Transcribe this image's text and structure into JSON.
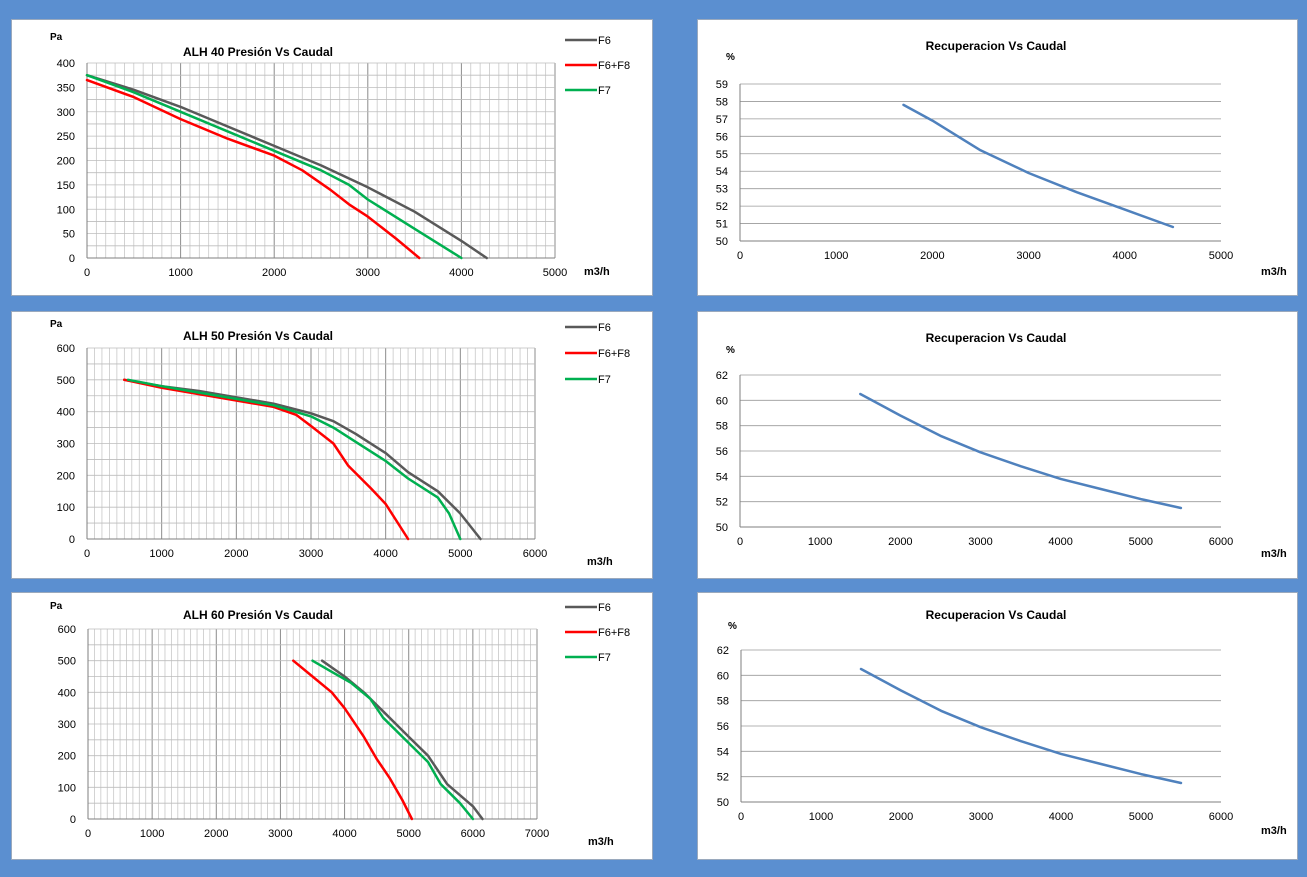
{
  "chart_data": [
    {
      "type": "line",
      "title": "ALH  40   Presión Vs Caudal",
      "xlabel": "m3/h",
      "ylabel": "Pa",
      "xlim": [
        0,
        5000
      ],
      "ylim": [
        0,
        400
      ],
      "xticks": [
        0,
        1000,
        2000,
        3000,
        4000,
        5000
      ],
      "yticks": [
        0,
        50,
        100,
        150,
        200,
        250,
        300,
        350,
        400
      ],
      "grid": "dense",
      "legend_position": "top-right",
      "series": [
        {
          "name": "F6",
          "color": "#595959",
          "points": [
            [
              0,
              375
            ],
            [
              500,
              345
            ],
            [
              1000,
              310
            ],
            [
              1500,
              270
            ],
            [
              2000,
              230
            ],
            [
              2500,
              190
            ],
            [
              3000,
              145
            ],
            [
              3500,
              95
            ],
            [
              4000,
              35
            ],
            [
              4270,
              0
            ]
          ]
        },
        {
          "name": "F6+F8",
          "color": "#FF0000",
          "points": [
            [
              0,
              365
            ],
            [
              500,
              330
            ],
            [
              1000,
              285
            ],
            [
              1500,
              245
            ],
            [
              2000,
              210
            ],
            [
              2300,
              180
            ],
            [
              2600,
              140
            ],
            [
              2800,
              110
            ],
            [
              3000,
              85
            ],
            [
              3300,
              40
            ],
            [
              3550,
              0
            ]
          ]
        },
        {
          "name": "F7",
          "color": "#00B050",
          "points": [
            [
              0,
              375
            ],
            [
              500,
              340
            ],
            [
              1000,
              300
            ],
            [
              1500,
              260
            ],
            [
              2000,
              220
            ],
            [
              2500,
              180
            ],
            [
              2800,
              150
            ],
            [
              3000,
              120
            ],
            [
              3500,
              60
            ],
            [
              4000,
              0
            ]
          ]
        }
      ]
    },
    {
      "type": "line",
      "title": "Recuperacion Vs Caudal",
      "xlabel": "m3/h",
      "ylabel": "%",
      "xlim": [
        0,
        5000
      ],
      "ylim": [
        50,
        59
      ],
      "xticks": [
        0,
        1000,
        2000,
        3000,
        4000,
        5000
      ],
      "yticks": [
        50,
        51,
        52,
        53,
        54,
        55,
        56,
        57,
        58,
        59
      ],
      "grid": "horizontal",
      "series": [
        {
          "color": "#4F81BD",
          "points": [
            [
              1700,
              57.8
            ],
            [
              2000,
              56.9
            ],
            [
              2500,
              55.2
            ],
            [
              3000,
              53.9
            ],
            [
              3500,
              52.8
            ],
            [
              4000,
              51.8
            ],
            [
              4500,
              50.8
            ]
          ]
        }
      ]
    },
    {
      "type": "line",
      "title": "ALH  50   Presión Vs Caudal",
      "xlabel": "m3/h",
      "ylabel": "Pa",
      "xlim": [
        0,
        6000
      ],
      "ylim": [
        0,
        600
      ],
      "xticks": [
        0,
        1000,
        2000,
        3000,
        4000,
        5000,
        6000
      ],
      "yticks": [
        0,
        100,
        200,
        300,
        400,
        500,
        600
      ],
      "grid": "dense",
      "legend_position": "top-right",
      "series": [
        {
          "name": "F6",
          "color": "#595959",
          "points": [
            [
              500,
              500
            ],
            [
              1000,
              480
            ],
            [
              1500,
              465
            ],
            [
              2000,
              445
            ],
            [
              2500,
              425
            ],
            [
              3000,
              395
            ],
            [
              3300,
              370
            ],
            [
              3600,
              330
            ],
            [
              4000,
              270
            ],
            [
              4300,
              210
            ],
            [
              4700,
              150
            ],
            [
              5000,
              80
            ],
            [
              5270,
              0
            ]
          ]
        },
        {
          "name": "F6+F8",
          "color": "#FF0000",
          "points": [
            [
              500,
              500
            ],
            [
              1000,
              475
            ],
            [
              1500,
              455
            ],
            [
              2000,
              435
            ],
            [
              2500,
              415
            ],
            [
              2800,
              390
            ],
            [
              3000,
              355
            ],
            [
              3300,
              300
            ],
            [
              3500,
              230
            ],
            [
              3800,
              160
            ],
            [
              4000,
              110
            ],
            [
              4300,
              0
            ]
          ]
        },
        {
          "name": "F7",
          "color": "#00B050",
          "points": [
            [
              550,
              500
            ],
            [
              1000,
              480
            ],
            [
              1500,
              460
            ],
            [
              2000,
              440
            ],
            [
              2500,
              420
            ],
            [
              3000,
              385
            ],
            [
              3300,
              350
            ],
            [
              3600,
              305
            ],
            [
              4000,
              245
            ],
            [
              4300,
              190
            ],
            [
              4700,
              130
            ],
            [
              4850,
              80
            ],
            [
              5000,
              0
            ]
          ]
        }
      ]
    },
    {
      "type": "line",
      "title": "Recuperacion Vs Caudal",
      "xlabel": "m3/h",
      "ylabel": "%",
      "xlim": [
        0,
        6000
      ],
      "ylim": [
        50,
        62
      ],
      "xticks": [
        0,
        1000,
        2000,
        3000,
        4000,
        5000,
        6000
      ],
      "yticks": [
        50,
        52,
        54,
        56,
        58,
        60,
        62
      ],
      "grid": "horizontal",
      "series": [
        {
          "color": "#4F81BD",
          "points": [
            [
              1500,
              60.5
            ],
            [
              2000,
              58.8
            ],
            [
              2500,
              57.2
            ],
            [
              3000,
              55.9
            ],
            [
              3500,
              54.8
            ],
            [
              4000,
              53.8
            ],
            [
              4500,
              53
            ],
            [
              5000,
              52.2
            ],
            [
              5500,
              51.5
            ]
          ]
        }
      ]
    },
    {
      "type": "line",
      "title": "ALH  60   Presión Vs Caudal",
      "xlabel": "m3/h",
      "ylabel": "Pa",
      "xlim": [
        0,
        7000
      ],
      "ylim": [
        0,
        600
      ],
      "xticks": [
        0,
        1000,
        2000,
        3000,
        4000,
        5000,
        6000,
        7000
      ],
      "yticks": [
        0,
        100,
        200,
        300,
        400,
        500,
        600
      ],
      "grid": "dense",
      "legend_position": "top-right",
      "series": [
        {
          "name": "F6",
          "color": "#595959",
          "points": [
            [
              3650,
              500
            ],
            [
              4000,
              450
            ],
            [
              4300,
              400
            ],
            [
              4600,
              340
            ],
            [
              5000,
              260
            ],
            [
              5300,
              200
            ],
            [
              5600,
              110
            ],
            [
              6000,
              40
            ],
            [
              6150,
              0
            ]
          ]
        },
        {
          "name": "F6+F8",
          "color": "#FF0000",
          "points": [
            [
              3200,
              500
            ],
            [
              3500,
              450
            ],
            [
              3800,
              400
            ],
            [
              4000,
              350
            ],
            [
              4300,
              260
            ],
            [
              4500,
              190
            ],
            [
              4700,
              130
            ],
            [
              4900,
              60
            ],
            [
              5050,
              0
            ]
          ]
        },
        {
          "name": "F7",
          "color": "#00B050",
          "points": [
            [
              3500,
              500
            ],
            [
              3800,
              465
            ],
            [
              4100,
              430
            ],
            [
              4400,
              380
            ],
            [
              4600,
              320
            ],
            [
              5000,
              240
            ],
            [
              5300,
              180
            ],
            [
              5500,
              110
            ],
            [
              5800,
              50
            ],
            [
              6000,
              0
            ]
          ]
        }
      ]
    },
    {
      "type": "line",
      "title": "Recuperacion Vs Caudal",
      "xlabel": "m3/h",
      "ylabel": "%",
      "xlim": [
        0,
        6000
      ],
      "ylim": [
        50,
        62
      ],
      "xticks": [
        0,
        1000,
        2000,
        3000,
        4000,
        5000,
        6000
      ],
      "yticks": [
        50,
        52,
        54,
        56,
        58,
        60,
        62
      ],
      "grid": "horizontal",
      "series": [
        {
          "color": "#4F81BD",
          "points": [
            [
              1500,
              60.5
            ],
            [
              2000,
              58.8
            ],
            [
              2500,
              57.2
            ],
            [
              3000,
              55.9
            ],
            [
              3500,
              54.8
            ],
            [
              4000,
              53.8
            ],
            [
              4500,
              53
            ],
            [
              5000,
              52.2
            ],
            [
              5500,
              51.5
            ]
          ]
        }
      ]
    }
  ]
}
